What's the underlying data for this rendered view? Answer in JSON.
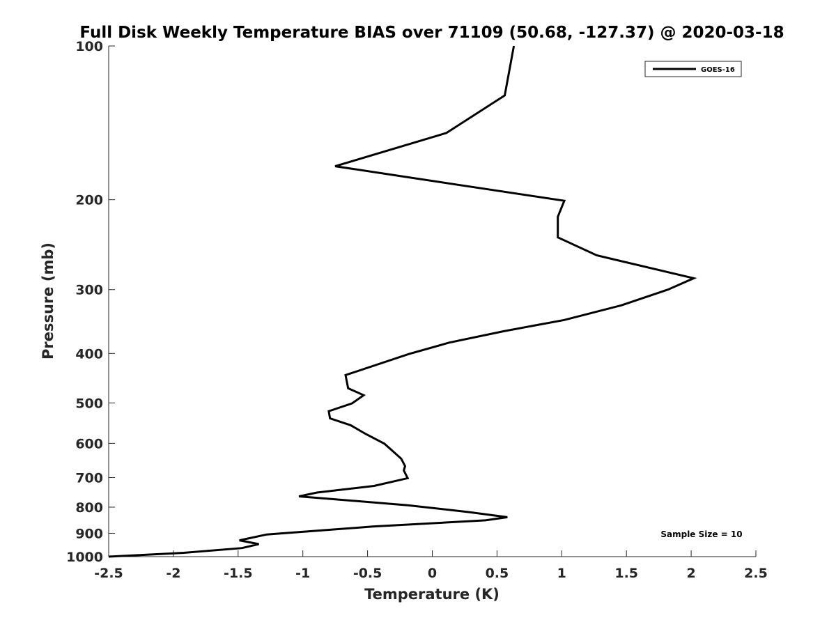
{
  "chart_data": {
    "type": "line",
    "title": "Full Disk Weekly Temperature BIAS over 71109 (50.68, -127.37) @ 2020-03-18",
    "xlabel": "Temperature (K)",
    "ylabel": "Pressure (mb)",
    "xlim": [
      -2.5,
      2.5
    ],
    "ylim": [
      1000,
      100
    ],
    "y_scale": "log",
    "x_ticks": [
      -2.5,
      -2,
      -1.5,
      -1,
      -0.5,
      0,
      0.5,
      1,
      1.5,
      2,
      2.5
    ],
    "x_tick_labels": [
      "-2.5",
      "-2",
      "-1.5",
      "-1",
      "-0.5",
      "0",
      "0.5",
      "1",
      "1.5",
      "2",
      "2.5"
    ],
    "y_ticks": [
      100,
      200,
      300,
      400,
      500,
      600,
      700,
      800,
      900,
      1000
    ],
    "y_tick_labels": [
      "100",
      "200",
      "300",
      "400",
      "500",
      "600",
      "700",
      "800",
      "900",
      "1000"
    ],
    "grid": false,
    "legend": {
      "position": "top-right",
      "entries": [
        "GOES-16"
      ]
    },
    "annotation": "Sample Size = 10",
    "series": [
      {
        "name": "GOES-16",
        "color": "#000000",
        "points": [
          [
            0.63,
            100
          ],
          [
            0.56,
            125
          ],
          [
            0.11,
            148
          ],
          [
            -0.75,
            172
          ],
          [
            0.2,
            187
          ],
          [
            1.02,
            201
          ],
          [
            0.97,
            216
          ],
          [
            0.97,
            237
          ],
          [
            1.27,
            257
          ],
          [
            2.02,
            285
          ],
          [
            1.82,
            300
          ],
          [
            1.46,
            322
          ],
          [
            1.02,
            344
          ],
          [
            0.55,
            362
          ],
          [
            0.13,
            381
          ],
          [
            -0.18,
            401
          ],
          [
            -0.67,
            441
          ],
          [
            -0.65,
            468
          ],
          [
            -0.53,
            483
          ],
          [
            -0.62,
            501
          ],
          [
            -0.8,
            519
          ],
          [
            -0.79,
            536
          ],
          [
            -0.63,
            553
          ],
          [
            -0.52,
            574
          ],
          [
            -0.37,
            601
          ],
          [
            -0.24,
            643
          ],
          [
            -0.21,
            665
          ],
          [
            -0.22,
            678
          ],
          [
            -0.19,
            702
          ],
          [
            -0.45,
            727
          ],
          [
            -0.89,
            749
          ],
          [
            -1.03,
            762
          ],
          [
            -0.19,
            793
          ],
          [
            0.28,
            818
          ],
          [
            0.58,
            837
          ],
          [
            0.41,
            849
          ],
          [
            -0.46,
            873
          ],
          [
            -1.28,
            905
          ],
          [
            -1.49,
            929
          ],
          [
            -1.34,
            945
          ],
          [
            -1.47,
            962
          ],
          [
            -1.92,
            983
          ],
          [
            -2.5,
            1000
          ]
        ]
      }
    ]
  }
}
